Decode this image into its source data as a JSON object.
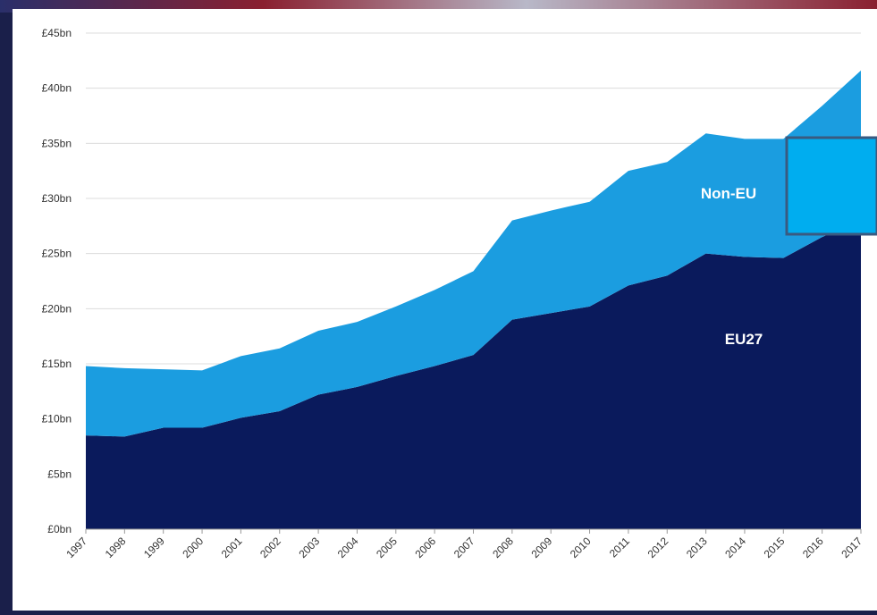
{
  "chart_data": {
    "type": "stacked-area",
    "categories": [
      "1997",
      "1998",
      "1999",
      "2000",
      "2001",
      "2002",
      "2003",
      "2004",
      "2005",
      "2006",
      "2007",
      "2008",
      "2009",
      "2010",
      "2011",
      "2012",
      "2013",
      "2014",
      "2015",
      "2016",
      "2017"
    ],
    "series": [
      {
        "name": "EU27",
        "color": "#0a1a5c",
        "values": [
          8.5,
          8.4,
          9.2,
          9.2,
          10.1,
          10.7,
          12.2,
          12.9,
          13.9,
          14.8,
          15.8,
          19.0,
          19.6,
          20.2,
          22.1,
          23.0,
          25.0,
          24.7,
          24.6,
          26.5,
          28.0
        ]
      },
      {
        "name": "Non-EU",
        "color": "#1b9de0",
        "values": [
          6.3,
          6.2,
          5.3,
          5.2,
          5.6,
          5.7,
          5.8,
          5.9,
          6.3,
          6.9,
          7.6,
          9.0,
          9.3,
          9.5,
          10.4,
          10.3,
          10.9,
          10.7,
          10.8,
          11.9,
          13.6
        ]
      }
    ],
    "ylim": [
      0,
      45
    ],
    "yticks": [
      {
        "value": 0,
        "label": "£0bn"
      },
      {
        "value": 5,
        "label": "£5bn"
      },
      {
        "value": 10,
        "label": "£10bn"
      },
      {
        "value": 15,
        "label": "£15bn"
      },
      {
        "value": 20,
        "label": "£20bn"
      },
      {
        "value": 25,
        "label": "£25bn"
      },
      {
        "value": 30,
        "label": "£30bn"
      },
      {
        "value": 35,
        "label": "£35bn"
      },
      {
        "value": 40,
        "label": "£40bn"
      },
      {
        "value": 45,
        "label": "£45bn"
      }
    ],
    "grid": true
  }
}
